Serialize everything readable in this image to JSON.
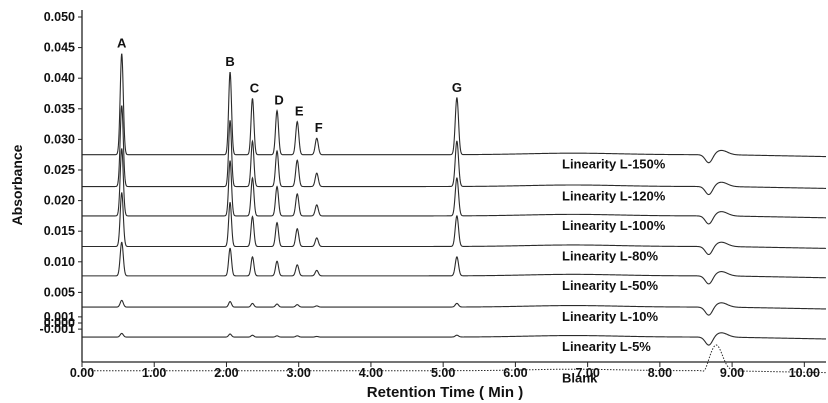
{
  "chart_data": {
    "type": "line",
    "title": "",
    "xlabel": "Retention Time ( Min )",
    "ylabel": "Absorbance",
    "xlim": [
      0.0,
      10.3
    ],
    "x_ticks": [
      "0.00",
      "1.00",
      "2.00",
      "3.00",
      "4.00",
      "5.00",
      "6.00",
      "7.00",
      "8.00",
      "9.00",
      "10.00"
    ],
    "y_ticks": [
      "0.050",
      "0.045",
      "0.040",
      "0.035",
      "0.030",
      "0.025",
      "0.020",
      "0.015",
      "0.010",
      "0.005",
      "0.001",
      "0.000",
      "-0.001"
    ],
    "grid": false,
    "peaks": [
      {
        "label": "A",
        "rt": 0.55
      },
      {
        "label": "B",
        "rt": 2.05
      },
      {
        "label": "C",
        "rt": 2.36
      },
      {
        "label": "D",
        "rt": 2.7
      },
      {
        "label": "E",
        "rt": 2.98
      },
      {
        "label": "F",
        "rt": 3.25
      },
      {
        "label": "G",
        "rt": 5.19
      }
    ],
    "series": [
      {
        "name": "Linearity L-150%",
        "baseline": 0.0275,
        "peak_heights": [
          0.0165,
          0.0135,
          0.0092,
          0.0072,
          0.0054,
          0.0027,
          0.0093
        ],
        "style": "solid"
      },
      {
        "name": "Linearity L-120%",
        "baseline": 0.0223,
        "peak_heights": [
          0.0132,
          0.0108,
          0.0074,
          0.0058,
          0.0043,
          0.0022,
          0.0074
        ],
        "style": "solid"
      },
      {
        "name": "Linearity L-100%",
        "baseline": 0.0175,
        "peak_heights": [
          0.011,
          0.009,
          0.0062,
          0.0048,
          0.0036,
          0.0018,
          0.0062
        ],
        "style": "solid"
      },
      {
        "name": "Linearity L-80%",
        "baseline": 0.0125,
        "peak_heights": [
          0.0088,
          0.0072,
          0.0049,
          0.0039,
          0.0029,
          0.0014,
          0.005
        ],
        "style": "solid"
      },
      {
        "name": "Linearity L-50%",
        "baseline": 0.0077,
        "peak_heights": [
          0.0055,
          0.0045,
          0.0031,
          0.0024,
          0.0018,
          0.0009,
          0.0031
        ],
        "style": "solid"
      },
      {
        "name": "Linearity L-10%",
        "baseline": 0.0026,
        "peak_heights": [
          0.0011,
          0.0009,
          0.0006,
          0.0005,
          0.0004,
          0.0002,
          0.0006
        ],
        "style": "solid"
      },
      {
        "name": "Linearity L-5%",
        "baseline": -0.0023,
        "peak_heights": [
          0.0006,
          0.0005,
          0.0003,
          0.0002,
          0.0002,
          0.0001,
          0.0003
        ],
        "style": "solid"
      },
      {
        "name": "Blank",
        "baseline": -0.0078,
        "peak_heights": [
          0,
          0,
          0,
          0,
          0,
          0,
          0
        ],
        "style": "dotted"
      }
    ],
    "colors": {
      "line": "#2b2b2b",
      "axis": "#222222",
      "background": "#ffffff"
    }
  }
}
